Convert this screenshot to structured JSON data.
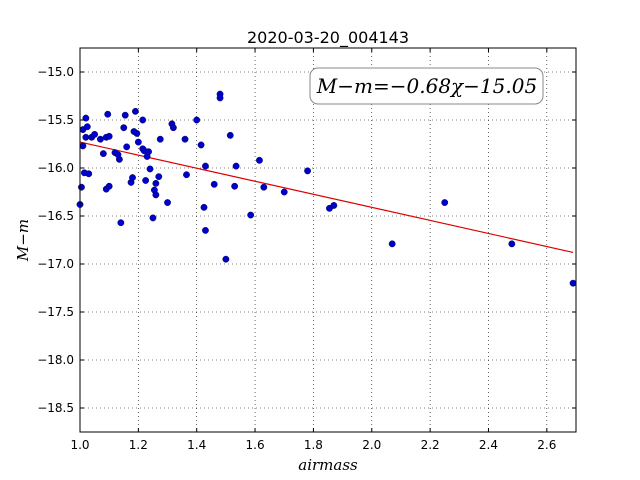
{
  "chart_data": {
    "type": "scatter",
    "title": "2020-03-20_004143",
    "xlabel": "airmass",
    "ylabel": "M−m",
    "xlim": [
      1.0,
      2.7
    ],
    "ylim": [
      -18.75,
      -14.75
    ],
    "y_inverted": true,
    "grid": true,
    "x_ticks": [
      1.0,
      1.2,
      1.4,
      1.6,
      1.8,
      2.0,
      2.2,
      2.4,
      2.6
    ],
    "x_tick_labels": [
      "1.0",
      "1.2",
      "1.4",
      "1.6",
      "1.8",
      "2.0",
      "2.2",
      "2.4",
      "2.6"
    ],
    "y_ticks": [
      -15.0,
      -15.5,
      -16.0,
      -16.5,
      -17.0,
      -17.5,
      -18.0,
      -18.5
    ],
    "y_tick_labels": [
      "−15.0",
      "−15.5",
      "−16.0",
      "−16.5",
      "−17.0",
      "−17.5",
      "−18.0",
      "−18.5"
    ],
    "annotation": "M−m=−0.68χ−15.05",
    "point_color": "#0000cc",
    "fit_color": "#dd0000",
    "fit_line": {
      "slope": -0.68,
      "intercept": -15.05,
      "x_range": [
        1.0,
        2.69
      ]
    },
    "points": [
      [
        1.0,
        -16.38
      ],
      [
        1.005,
        -16.2
      ],
      [
        1.01,
        -15.77
      ],
      [
        1.01,
        -15.6
      ],
      [
        1.015,
        -16.05
      ],
      [
        1.02,
        -15.68
      ],
      [
        1.02,
        -15.48
      ],
      [
        1.025,
        -15.57
      ],
      [
        1.03,
        -16.06
      ],
      [
        1.04,
        -15.68
      ],
      [
        1.05,
        -15.65
      ],
      [
        1.07,
        -15.7
      ],
      [
        1.08,
        -15.85
      ],
      [
        1.09,
        -15.68
      ],
      [
        1.09,
        -16.22
      ],
      [
        1.095,
        -15.44
      ],
      [
        1.1,
        -16.19
      ],
      [
        1.1,
        -15.67
      ],
      [
        1.12,
        -15.84
      ],
      [
        1.13,
        -15.86
      ],
      [
        1.135,
        -15.91
      ],
      [
        1.14,
        -16.57
      ],
      [
        1.15,
        -15.58
      ],
      [
        1.155,
        -15.45
      ],
      [
        1.16,
        -15.78
      ],
      [
        1.175,
        -16.15
      ],
      [
        1.18,
        -16.1
      ],
      [
        1.185,
        -15.62
      ],
      [
        1.19,
        -15.41
      ],
      [
        1.195,
        -15.64
      ],
      [
        1.2,
        -15.73
      ],
      [
        1.215,
        -15.5
      ],
      [
        1.215,
        -15.8
      ],
      [
        1.22,
        -15.82
      ],
      [
        1.225,
        -16.13
      ],
      [
        1.23,
        -15.88
      ],
      [
        1.235,
        -15.83
      ],
      [
        1.24,
        -16.01
      ],
      [
        1.25,
        -16.52
      ],
      [
        1.255,
        -16.23
      ],
      [
        1.26,
        -16.16
      ],
      [
        1.26,
        -16.28
      ],
      [
        1.27,
        -16.09
      ],
      [
        1.275,
        -15.7
      ],
      [
        1.3,
        -16.36
      ],
      [
        1.315,
        -15.54
      ],
      [
        1.32,
        -15.58
      ],
      [
        1.36,
        -15.7
      ],
      [
        1.365,
        -16.07
      ],
      [
        1.4,
        -15.5
      ],
      [
        1.415,
        -15.76
      ],
      [
        1.425,
        -16.41
      ],
      [
        1.43,
        -15.98
      ],
      [
        1.43,
        -16.65
      ],
      [
        1.46,
        -16.17
      ],
      [
        1.48,
        -15.23
      ],
      [
        1.48,
        -15.27
      ],
      [
        1.5,
        -16.95
      ],
      [
        1.515,
        -15.66
      ],
      [
        1.53,
        -16.19
      ],
      [
        1.535,
        -15.98
      ],
      [
        1.585,
        -16.49
      ],
      [
        1.615,
        -15.92
      ],
      [
        1.63,
        -16.2
      ],
      [
        1.7,
        -16.25
      ],
      [
        1.78,
        -16.03
      ],
      [
        1.855,
        -16.42
      ],
      [
        1.87,
        -16.39
      ],
      [
        2.07,
        -16.79
      ],
      [
        2.25,
        -16.36
      ],
      [
        2.48,
        -16.79
      ],
      [
        2.69,
        -17.2
      ]
    ]
  }
}
